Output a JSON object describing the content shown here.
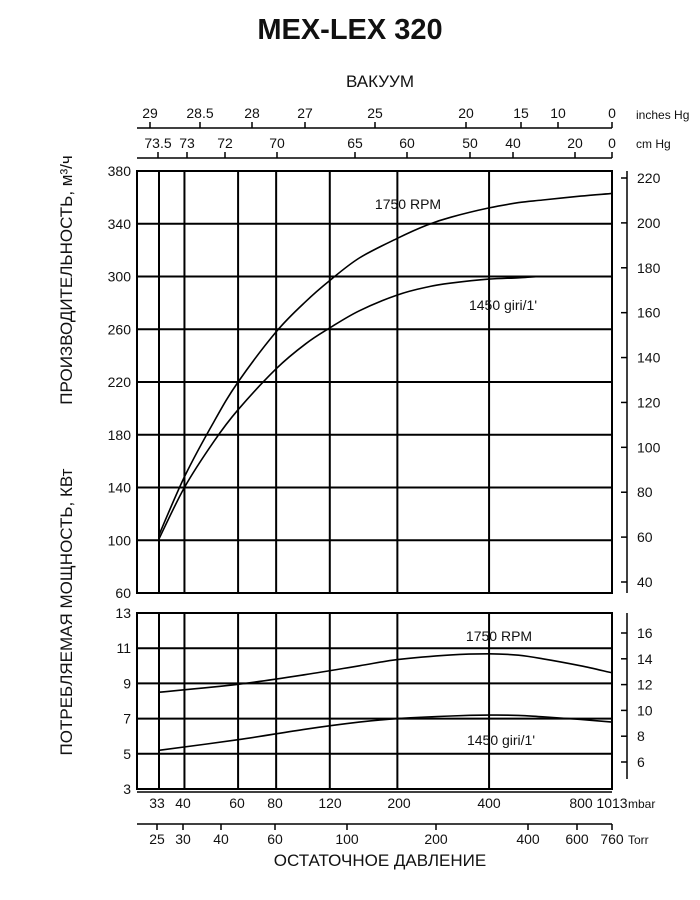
{
  "title": "MEX-LEX 320",
  "chart_data": [
    {
      "type": "line",
      "title": "",
      "ylabel": "ПРОИЗВОДИТЕЛЬНОСТЬ, м³/ч",
      "y_ticks": [
        60,
        100,
        140,
        180,
        220,
        260,
        300,
        340,
        380
      ],
      "ylim": [
        60,
        380
      ],
      "y2_ticks": [
        40,
        60,
        80,
        100,
        120,
        140,
        160,
        180,
        200,
        220
      ],
      "top_axis_label": "ВАКУУМ",
      "top_axis_inches_ticks": [
        "29",
        "28.5",
        "28",
        "27",
        "25",
        "20",
        "15",
        "10",
        "0"
      ],
      "top_axis_inches_unit": "inches Hg",
      "top_axis_cm_ticks": [
        "73.5",
        "73",
        "72",
        "70",
        "65",
        "60",
        "50",
        "40",
        "20",
        "0"
      ],
      "top_axis_cm_unit": "cm Hg",
      "x_scale": "log (pressure, mbar)",
      "x_unit": "mbar",
      "grid": true,
      "series": [
        {
          "name": "1750 RPM",
          "x": [
            33,
            40,
            50,
            60,
            80,
            100,
            120,
            150,
            200,
            250,
            300,
            400,
            500,
            600,
            800,
            1013
          ],
          "values": [
            104,
            148,
            190,
            220,
            258,
            281,
            297,
            314,
            329,
            339,
            345,
            352,
            356,
            358,
            361,
            363
          ]
        },
        {
          "name": "1450 giri/1'",
          "x": [
            33,
            40,
            50,
            60,
            80,
            100,
            120,
            150,
            200,
            250,
            300,
            400,
            500,
            600,
            800,
            1013
          ],
          "values": [
            101,
            140,
            175,
            199,
            230,
            249,
            261,
            274,
            286,
            292,
            295,
            298,
            299,
            300,
            300,
            300
          ]
        }
      ]
    },
    {
      "type": "line",
      "title": "",
      "ylabel": "ПОТРЕБЛЯЕМАЯ МОЩНОСТЬ, КВт",
      "y_ticks": [
        3,
        5,
        7,
        9,
        11,
        13
      ],
      "ylim": [
        3,
        13
      ],
      "y2_ticks": [
        6,
        8,
        10,
        12,
        14,
        16
      ],
      "x_ticks_mbar": [
        "33",
        "40",
        "60",
        "80",
        "120",
        "200",
        "400",
        "800",
        "1013"
      ],
      "x_unit_mbar": "mbar",
      "x_ticks_torr": [
        "25",
        "30",
        "40",
        "60",
        "100",
        "200",
        "400",
        "600",
        "760"
      ],
      "x_unit_torr": "Torr",
      "xlabel": "ОСТАТОЧНОЕ ДАВЛЕНИЕ",
      "x_scale": "log (pressure, mbar)",
      "grid": true,
      "series": [
        {
          "name": "1750 RPM",
          "x": [
            33,
            60,
            100,
            150,
            200,
            300,
            400,
            500,
            600,
            800,
            1013
          ],
          "values": [
            8.5,
            8.95,
            9.5,
            10.0,
            10.35,
            10.62,
            10.68,
            10.6,
            10.4,
            10.0,
            9.6
          ]
        },
        {
          "name": "1450 giri/1'",
          "x": [
            33,
            60,
            100,
            150,
            200,
            300,
            400,
            500,
            600,
            800,
            1013
          ],
          "values": [
            5.2,
            5.8,
            6.4,
            6.8,
            7.0,
            7.15,
            7.2,
            7.18,
            7.1,
            6.95,
            6.8
          ]
        }
      ]
    }
  ]
}
